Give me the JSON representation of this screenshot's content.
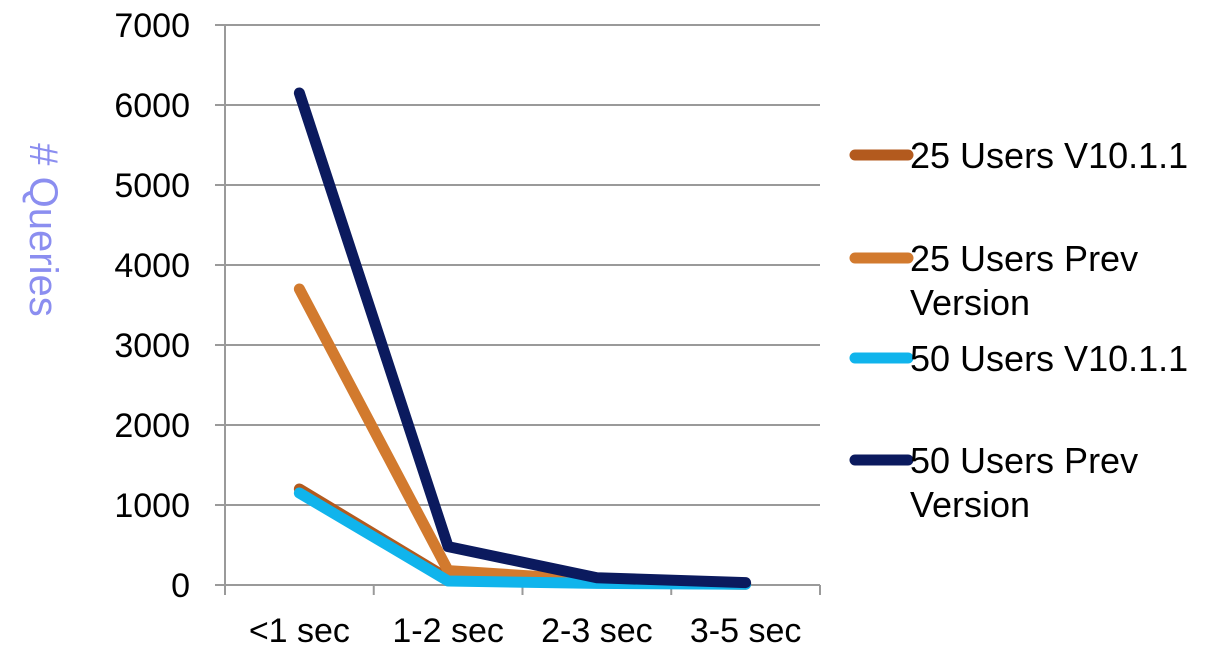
{
  "chart_data": {
    "type": "line",
    "title": "",
    "xlabel": "",
    "ylabel": "# Queries",
    "ylabel_color": "#8b8ef0",
    "categories": [
      "<1 sec",
      "1-2 sec",
      "2-3 sec",
      "3-5 sec"
    ],
    "y_ticks": [
      "0",
      "1000",
      "2000",
      "3000",
      "4000",
      "5000",
      "6000",
      "7000"
    ],
    "ylim": [
      0,
      7000
    ],
    "grid": true,
    "legend_position": "right",
    "series": [
      {
        "name": "25 Users V10.1.1",
        "color": "#b35a1e",
        "values": [
          1200,
          80,
          30,
          10
        ]
      },
      {
        "name": "25 Users Prev Version",
        "color": "#d27a2e",
        "values": [
          3700,
          180,
          60,
          20
        ]
      },
      {
        "name": "50 Users V10.1.1",
        "color": "#10b4ec",
        "values": [
          1150,
          50,
          20,
          10
        ]
      },
      {
        "name": "50 Users Prev Version",
        "color": "#0b1a5e",
        "values": [
          6150,
          480,
          90,
          30
        ]
      }
    ]
  }
}
